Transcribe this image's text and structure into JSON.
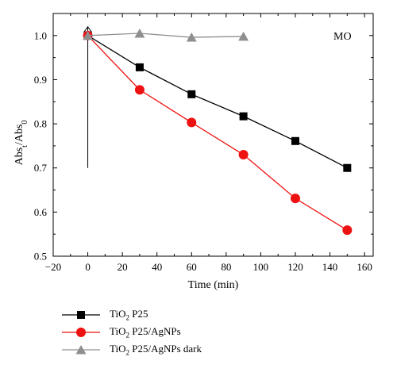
{
  "chart_data": {
    "type": "line",
    "xlabel": "Time (min)",
    "ylabel_parts": [
      "Abs",
      "t",
      "/Abs",
      "0"
    ],
    "xlim": [
      -20,
      165
    ],
    "ylim": [
      0.5,
      1.05
    ],
    "xticks": [
      -20,
      0,
      20,
      40,
      60,
      80,
      100,
      120,
      140,
      160
    ],
    "yticks": [
      0.5,
      0.6,
      0.7,
      0.8,
      0.9,
      1.0
    ],
    "xtick_labels": [
      "−20",
      "0",
      "20",
      "40",
      "60",
      "80",
      "100",
      "120",
      "140",
      "160"
    ],
    "ytick_labels": [
      "0.5",
      "0.6",
      "0.7",
      "0.8",
      "0.9",
      "1.0"
    ],
    "annotation": "MO",
    "marker_line": {
      "x": 0,
      "y_from": 0.7,
      "y_to": 1.02
    },
    "series": [
      {
        "name": "TiO2 P25",
        "color": "#000000",
        "marker": "square",
        "x": [
          0,
          30,
          60,
          90,
          120,
          150
        ],
        "y": [
          1.0,
          0.928,
          0.867,
          0.817,
          0.761,
          0.7
        ]
      },
      {
        "name": "TiO2 P25/AgNPs",
        "color": "#ee1111",
        "marker": "circle",
        "x": [
          0,
          30,
          60,
          90,
          120,
          150
        ],
        "y": [
          1.0,
          0.877,
          0.803,
          0.73,
          0.631,
          0.559
        ]
      },
      {
        "name": "TiO2 P25/AgNPs dark",
        "color": "#8f8f8f",
        "marker": "triangle",
        "x": [
          0,
          30,
          60,
          90
        ],
        "y": [
          1.0,
          1.005,
          0.996,
          0.998
        ]
      }
    ]
  },
  "legend": [
    {
      "pre": "TiO",
      "sub": "2",
      "post": " P25",
      "color": "#000000",
      "marker": "square"
    },
    {
      "pre": "TiO",
      "sub": "2",
      "post": " P25/AgNPs",
      "color": "#ee1111",
      "marker": "circle"
    },
    {
      "pre": "TiO",
      "sub": "2",
      "post": " P25/AgNPs dark",
      "color": "#8f8f8f",
      "marker": "triangle"
    }
  ]
}
